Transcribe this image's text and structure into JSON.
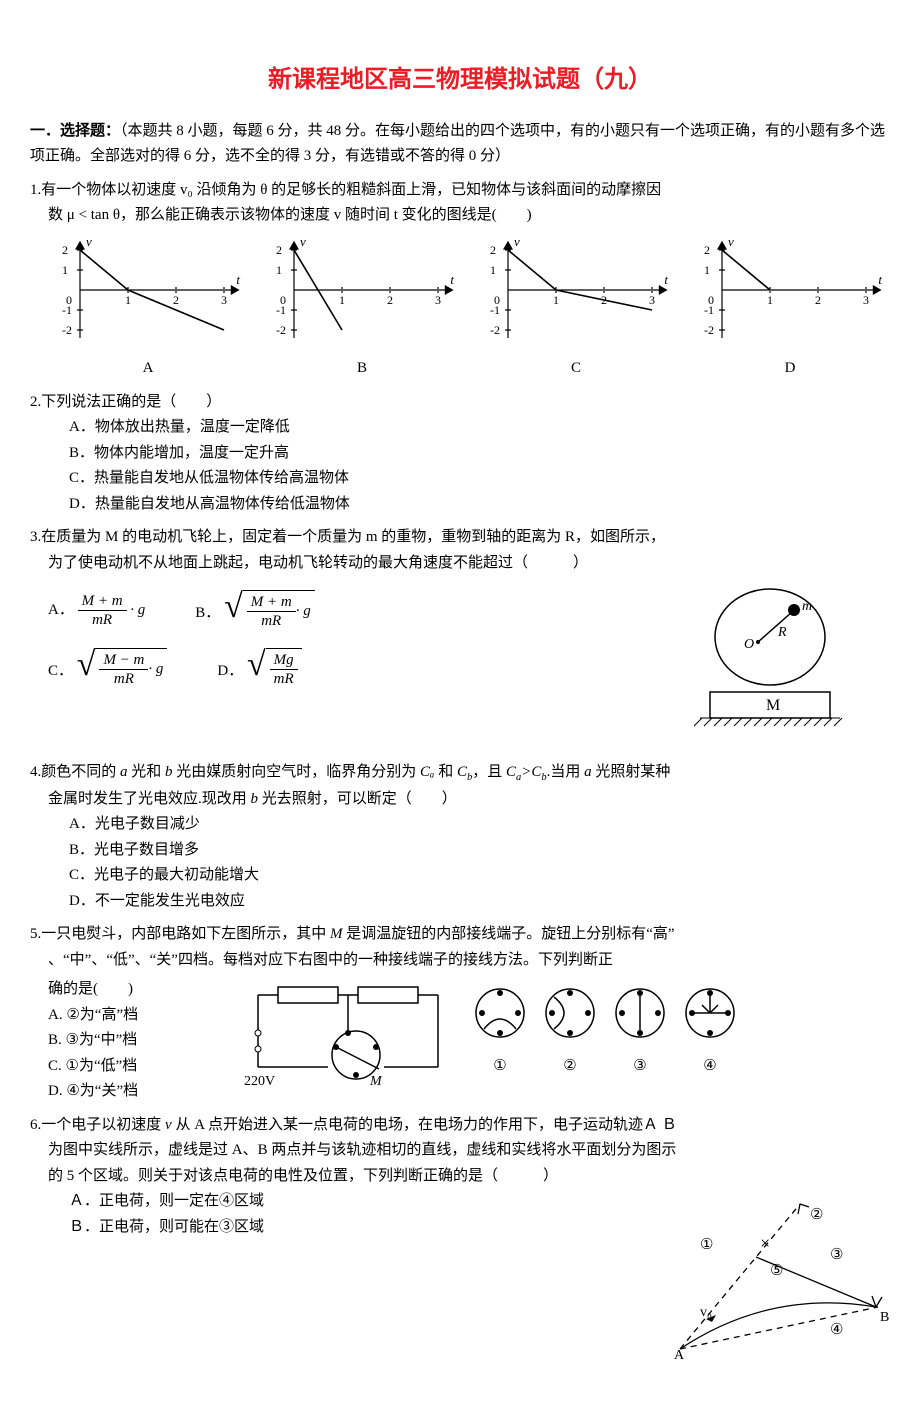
{
  "colors": {
    "title": "#ed1c24",
    "text": "#000000",
    "background": "#ffffff",
    "axis": "#000000"
  },
  "title": "新课程地区高三物理模拟试题（九）",
  "section_head_prefix": "一．选择题：",
  "section_head_body": "（本题共 8 小题，每题 6 分，共 48 分。在每小题给出的四个选项中，有的小题只有一个选项正确，有的小题有多个选项正确。全部选对的得 6 分，选不全的得 3 分，有选错或不答的得 0 分）",
  "q1": {
    "num": "1.",
    "text_l1": "有一个物体以初速度 v₀ 沿倾角为 θ 的足够长的粗糙斜面上滑，已知物体与该斜面间的动摩擦因",
    "text_l2": "数 μ < tan θ，那么能正确表示该物体的速度 v 随时间 t 变化的图线是(　　)",
    "labels": [
      "A",
      "B",
      "C",
      "D"
    ],
    "chart": {
      "type": "line",
      "xlim": [
        0,
        3.3
      ],
      "ylim": [
        -2.4,
        2.4
      ],
      "xticks": [
        1,
        2,
        3
      ],
      "yticks": [
        -2,
        -1,
        1,
        2
      ],
      "y_label": "v",
      "x_label": "t",
      "axis_color": "#000000",
      "series": {
        "A": [
          [
            0,
            2
          ],
          [
            1,
            0
          ],
          [
            3,
            -2
          ]
        ],
        "B": [
          [
            0,
            2
          ],
          [
            1,
            -2
          ]
        ],
        "C": [
          [
            0,
            2
          ],
          [
            1,
            0
          ],
          [
            3,
            -1
          ]
        ],
        "D": [
          [
            0,
            2
          ],
          [
            1,
            0
          ]
        ]
      }
    }
  },
  "q2": {
    "num": "2.",
    "stem": "下列说法正确的是（　　）",
    "A": "A．物体放出热量，温度一定降低",
    "B": "B．物体内能增加，温度一定升高",
    "C": "C．热量能自发地从低温物体传给高温物体",
    "D": "D．热量能自发地从高温物体传给低温物体"
  },
  "q3": {
    "num": "3.",
    "l1": "在质量为 M 的电动机飞轮上，固定着一个质量为 m 的重物，重物到轴的距离为 R，如图所示，",
    "l2": "为了使电动机不从地面上跳起，电动机飞轮转动的最大角速度不能超过（　　　）",
    "labelA": "A．",
    "labelB": "B．",
    "labelC": "C．",
    "labelD": "D．",
    "fA_num": "M + m",
    "fA_den": "mR",
    "fA_tail": " · g",
    "fB_num": "M + m",
    "fB_den": "mR",
    "fB_tail": " · g",
    "fC_num": "M − m",
    "fC_den": "mR",
    "fC_tail": " · g",
    "fD_num": "Mg",
    "fD_den": "mR",
    "fig_m": "m",
    "fig_R": "R",
    "fig_O": "O",
    "fig_M": "M"
  },
  "q4": {
    "num": "4.",
    "l1_a": "颜色不同的 ",
    "a": "a",
    "l1_b": " 光和 ",
    "b": "b",
    "l1_c": " 光由媒质射向空气时，临界角分别为 ",
    "Ca": "Cₐ",
    "and": " 和 ",
    "Cb": "C_b",
    "comma": "，且 ",
    "ineq": "Cₐ>C_b",
    "tail1": ".当用 ",
    "a2": "a",
    "tail1b": " 光照射某种",
    "l2": "金属时发生了光电效应.现改用 ",
    "b2": "b",
    "l2b": " 光去照射，可以断定（　　）",
    "A": "A．光电子数目减少",
    "B": "B．光电子数目增多",
    "C": "C．光电子的最大初动能增大",
    "D": "D．不一定能发生光电效应"
  },
  "q5": {
    "num": "5.",
    "l1_a": "一只电熨斗，内部电路如下左图所示，其中 ",
    "M": "M",
    "l1_b": " 是调温旋钮的内部接线端子。旋钮上分别标有“高”",
    "l2": "、“中”、“低”、“关”四档。每档对应下右图中的一种接线端子的接线方法。下列判断正",
    "l3": "确的是(　　)",
    "A": "A. ②为“高”档",
    "B": "B. ③为“中”档",
    "C": "C. ①为“低”档",
    "D": "D. ④为“关”档",
    "voltage": "220V",
    "circuit_M": "M",
    "dial_labels": [
      "①",
      "②",
      "③",
      "④"
    ]
  },
  "q6": {
    "num": "6.",
    "l1_a": "一个电子以初速度 ",
    "v": "v",
    "l1_b": " 从 A 点开始进入某一点电荷的电场，在电场力的作用下，电子运动轨迹Ａ Ｂ",
    "l2": "为图中实线所示，虚线是过 A、B 两点并与该轨迹相切的直线，虚线和实线将水平面划分为图示",
    "l3": "的 5 个区域。则关于对该点电荷的电性及位置，下列判断正确的是（　　　）",
    "A": "Ａ．正电荷，则一定在④区域",
    "B": "Ｂ．正电荷，则可能在③区域",
    "fig": {
      "r1": "①",
      "r2": "②",
      "r3": "③",
      "r4": "④",
      "r5": "⑤",
      "A": "A",
      "B": "B",
      "v0": "v₀"
    }
  }
}
